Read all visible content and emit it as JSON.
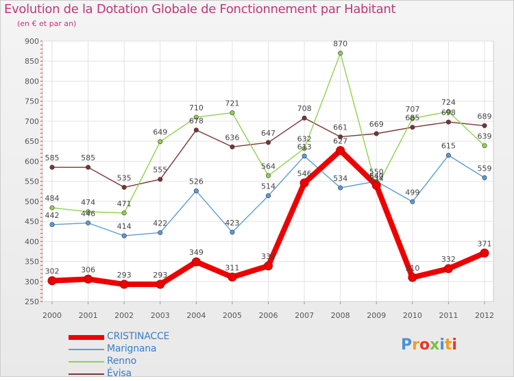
{
  "title": "Evolution de la Dotation Globale de Fonctionnement par Habitant",
  "subtitle": "(en € et par an)",
  "logo": {
    "text": "Proxiti",
    "colors": [
      "#4a90d9",
      "#f29c1f",
      "#e8362b",
      "#7bc143",
      "#4a90d9",
      "#f29c1f",
      "#e8362b"
    ]
  },
  "chart_data": {
    "type": "line",
    "categories": [
      "2000",
      "2001",
      "2002",
      "2003",
      "2004",
      "2005",
      "2006",
      "2007",
      "2008",
      "2009",
      "2010",
      "2011",
      "2012"
    ],
    "ylim": [
      250,
      900
    ],
    "yticks": [
      250,
      300,
      350,
      400,
      450,
      500,
      550,
      600,
      650,
      700,
      750,
      800,
      850,
      900
    ],
    "grid": true,
    "legend_position": "bottom-left",
    "series": [
      {
        "name": "CRISTINACCE",
        "color": "#ee0000",
        "values": [
          302,
          306,
          293,
          293,
          349,
          311,
          339,
          546,
          627,
          540,
          310,
          332,
          371
        ],
        "labels": [
          "302",
          "306",
          "293",
          "293",
          "349",
          "311",
          "339",
          "546",
          "627",
          "540",
          "310",
          "332",
          "371"
        ]
      },
      {
        "name": "Marignana",
        "color": "#5b9bd5",
        "values": [
          442,
          446,
          414,
          422,
          526,
          423,
          514,
          613,
          534,
          550,
          499,
          615,
          559
        ],
        "labels": [
          "442",
          "446",
          "414",
          "422",
          "526",
          "423",
          "514",
          "613",
          "534",
          "550",
          "499",
          "615",
          "559"
        ]
      },
      {
        "name": "Renno",
        "color": "#8fd14f",
        "values": [
          484,
          474,
          471,
          649,
          710,
          721,
          564,
          632,
          870,
          534,
          707,
          724,
          639
        ],
        "labels": [
          "484",
          "474",
          "471",
          "649",
          "710",
          "721",
          "564",
          "632",
          "870",
          "534",
          "707",
          "724",
          "639"
        ]
      },
      {
        "name": "Évisa",
        "color": "#7b3333",
        "values": [
          585,
          585,
          535,
          555,
          678,
          636,
          647,
          708,
          661,
          669,
          685,
          698,
          689
        ],
        "labels": [
          "585",
          "585",
          "535",
          "555",
          "678",
          "636",
          "647",
          "708",
          "661",
          "669",
          "685",
          "698",
          "689"
        ]
      }
    ]
  }
}
